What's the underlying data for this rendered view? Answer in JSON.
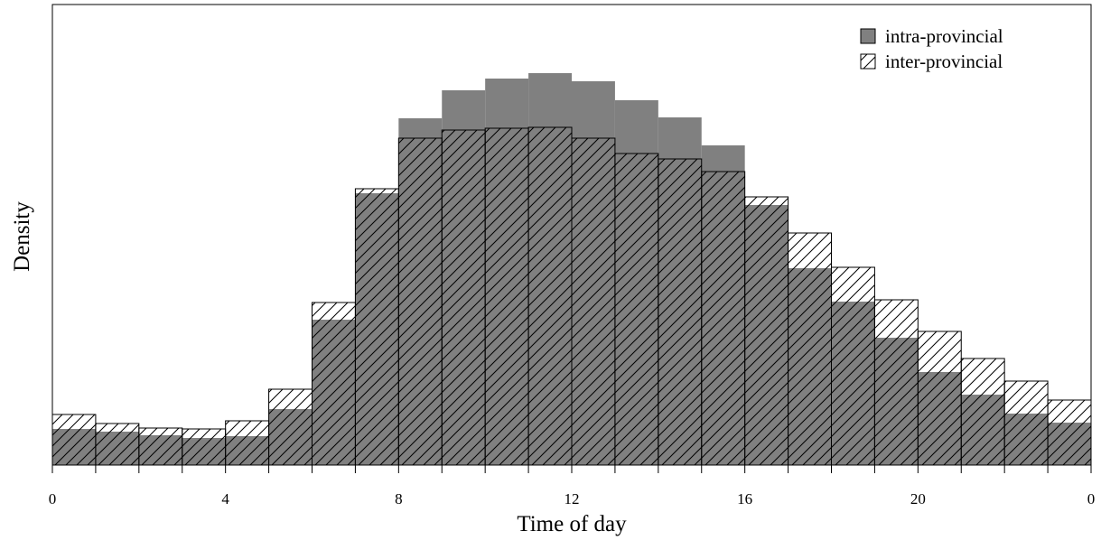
{
  "chart_data": {
    "type": "histogram",
    "xlabel": "Time of day",
    "ylabel": "Density",
    "bins": [
      0,
      1,
      2,
      3,
      4,
      5,
      6,
      7,
      8,
      9,
      10,
      11,
      12,
      13,
      14,
      15,
      16,
      17,
      18,
      19,
      20,
      21,
      22,
      23,
      24
    ],
    "series": [
      {
        "name": "intra-provincial",
        "color": "#808080",
        "hatch": false,
        "values": [
          0.008,
          0.0074,
          0.0066,
          0.006,
          0.0064,
          0.0124,
          0.0322,
          0.0602,
          0.0768,
          0.083,
          0.0856,
          0.0868,
          0.085,
          0.0808,
          0.077,
          0.0708,
          0.0576,
          0.0436,
          0.0362,
          0.0282,
          0.0206,
          0.0156,
          0.0114,
          0.0094
        ]
      },
      {
        "name": "inter-provincial",
        "color": "#000000",
        "hatch": true,
        "values": [
          0.0112,
          0.0092,
          0.0082,
          0.008,
          0.0098,
          0.0168,
          0.036,
          0.0612,
          0.0724,
          0.0742,
          0.0746,
          0.0748,
          0.0724,
          0.069,
          0.0678,
          0.065,
          0.0594,
          0.0514,
          0.0438,
          0.0366,
          0.0296,
          0.0236,
          0.0186,
          0.0144
        ]
      }
    ],
    "xlim": [
      0,
      24
    ],
    "ylim": [
      0,
      0.102
    ],
    "xticks": [
      0,
      4,
      8,
      12,
      16,
      20,
      {
        "value": 24,
        "label": "0"
      }
    ],
    "xminor_ticks": [
      1,
      2,
      3,
      5,
      6,
      7,
      9,
      10,
      11,
      13,
      14,
      15,
      17,
      18,
      19,
      21,
      22,
      23
    ],
    "legend": "upper right"
  }
}
